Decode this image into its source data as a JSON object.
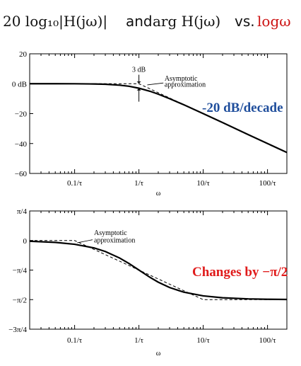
{
  "header": {
    "expr1": "20 log₁₀|H(jω)|",
    "and": "and",
    "expr2": "arg H(jω)",
    "vs": "vs.",
    "logw": "logω"
  },
  "chart_data": [
    {
      "type": "line",
      "xscale": "log",
      "x_unit_label": "ω",
      "xlabel": "ω",
      "ylabel": "",
      "xlim": [
        0.02,
        200
      ],
      "ylim": [
        -60,
        20
      ],
      "xticks": [
        0.1,
        1,
        10,
        100
      ],
      "xtick_labels": [
        "0.1/τ",
        "1/τ",
        "10/τ",
        "100/τ"
      ],
      "yticks": [
        20,
        0,
        -20,
        -40,
        -60
      ],
      "ytick_labels": [
        "20",
        "0 dB",
        "−20",
        "−40",
        "−60"
      ],
      "series": [
        {
          "style": "solid",
          "x": [
            0.02,
            0.05,
            0.1,
            0.2,
            0.3,
            0.5,
            0.7,
            1,
            1.5,
            2,
            3,
            5,
            10,
            20,
            50,
            100,
            200
          ],
          "y": [
            0,
            -0.01,
            -0.04,
            -0.17,
            -0.37,
            -0.97,
            -1.7,
            -3.01,
            -5.1,
            -6.99,
            -10,
            -14.1,
            -20,
            -26,
            -34,
            -40,
            -46
          ]
        },
        {
          "style": "dashed",
          "x": [
            0.02,
            1,
            200
          ],
          "y": [
            0,
            0,
            -46
          ]
        }
      ],
      "annotations": [
        {
          "text": "3 dB",
          "x": 1,
          "y": 8
        },
        {
          "text": "Asymptotic",
          "x": 2.5,
          "y": 2
        },
        {
          "text": "approximation",
          "x": 2.5,
          "y": -2
        }
      ],
      "callout": {
        "text": "-20 dB/decade",
        "color": "#1f4e9c"
      }
    },
    {
      "type": "line",
      "xscale": "log",
      "xlabel": "ω",
      "ylabel": "",
      "xlim": [
        0.02,
        200
      ],
      "ylim": [
        -2.3562,
        0.7854
      ],
      "xticks": [
        0.1,
        1,
        10,
        100
      ],
      "xtick_labels": [
        "0.1/τ",
        "1/τ",
        "10/τ",
        "100/τ"
      ],
      "yticks": [
        0.7854,
        0,
        -0.7854,
        -1.5708,
        -2.3562
      ],
      "ytick_labels": [
        "π/4",
        "0",
        "−π/4",
        "−π/2",
        "−3π/4"
      ],
      "series": [
        {
          "style": "solid",
          "x": [
            0.02,
            0.05,
            0.1,
            0.2,
            0.3,
            0.5,
            0.7,
            1,
            1.5,
            2,
            3,
            5,
            10,
            20,
            50,
            100,
            200
          ],
          "y": [
            -0.02,
            -0.05,
            -0.1,
            -0.197,
            -0.291,
            -0.464,
            -0.611,
            -0.785,
            -0.983,
            -1.107,
            -1.249,
            -1.373,
            -1.471,
            -1.521,
            -1.551,
            -1.561,
            -1.566
          ]
        },
        {
          "style": "dashed",
          "x": [
            0.02,
            0.1,
            10,
            200
          ],
          "y": [
            0,
            0,
            -1.5708,
            -1.5708
          ]
        }
      ],
      "annotations": [
        {
          "text": "Asymptotic",
          "x": 0.2,
          "y": 0.15
        },
        {
          "text": "approximation",
          "x": 0.2,
          "y": -0.05
        }
      ],
      "callout": {
        "text": "Changes by −π/2",
        "color": "#e01b1b"
      }
    }
  ]
}
